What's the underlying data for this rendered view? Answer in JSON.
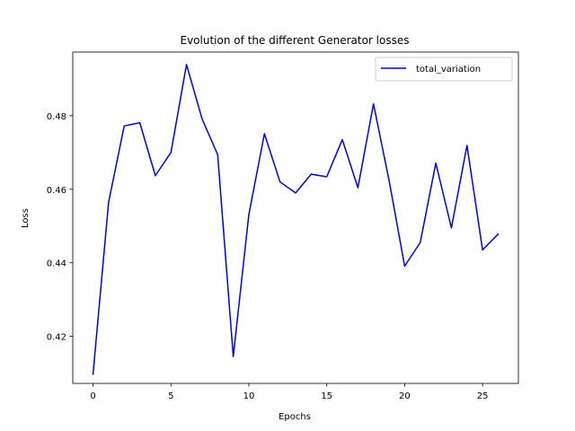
{
  "chart_data": {
    "type": "line",
    "title": "Evolution of the different Generator losses",
    "xlabel": "Epochs",
    "ylabel": "Loss",
    "xlim": [
      -1.3,
      27.3
    ],
    "ylim": [
      0.4072,
      0.4973
    ],
    "xticks": [
      0,
      5,
      10,
      15,
      20,
      25
    ],
    "xtick_labels": [
      "0",
      "5",
      "10",
      "15",
      "20",
      "25"
    ],
    "yticks": [
      0.42,
      0.44,
      0.46,
      0.48
    ],
    "ytick_labels": [
      "0.42",
      "0.44",
      "0.46",
      "0.48"
    ],
    "grid": false,
    "legend_position": "top-right",
    "series": [
      {
        "name": "total_variation",
        "color": "#0000dd",
        "x": [
          0,
          1,
          2,
          3,
          4,
          5,
          6,
          7,
          8,
          9,
          10,
          11,
          12,
          13,
          14,
          15,
          16,
          17,
          18,
          19,
          20,
          21,
          22,
          23,
          24,
          25,
          26
        ],
        "y": [
          0.4097,
          0.4565,
          0.4772,
          0.4781,
          0.4637,
          0.47,
          0.4939,
          0.4791,
          0.4694,
          0.4145,
          0.4531,
          0.4751,
          0.462,
          0.459,
          0.4641,
          0.4634,
          0.4735,
          0.4604,
          0.4832,
          0.4624,
          0.4391,
          0.4455,
          0.4671,
          0.4495,
          0.4719,
          0.4435,
          0.4478
        ]
      }
    ]
  }
}
